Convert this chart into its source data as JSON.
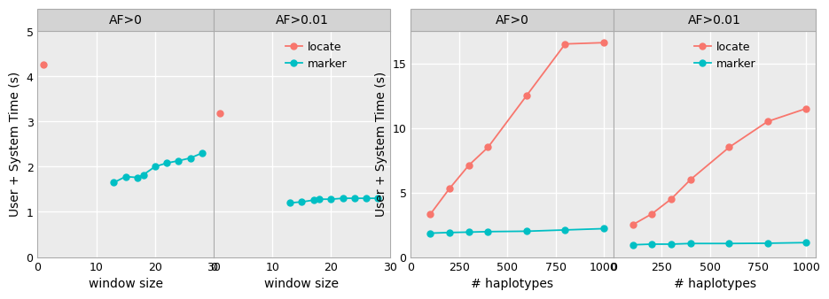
{
  "panel1": {
    "title": "AF>0",
    "locate_x": [
      1
    ],
    "locate_y": [
      4.25
    ],
    "marker_x": [
      13,
      15,
      17,
      18,
      20,
      22,
      24,
      26,
      28
    ],
    "marker_y": [
      1.65,
      1.78,
      1.76,
      1.82,
      2.0,
      2.08,
      2.13,
      2.19,
      2.3
    ],
    "ylim": [
      0,
      5
    ],
    "xlim": [
      0,
      30
    ],
    "yticks": [
      0,
      1,
      2,
      3,
      4,
      5
    ],
    "xticks": [
      0,
      10,
      20,
      30
    ]
  },
  "panel2": {
    "title": "AF>0.01",
    "locate_x": [
      1
    ],
    "locate_y": [
      3.18
    ],
    "marker_x": [
      13,
      15,
      17,
      18,
      20,
      22,
      24,
      26,
      28
    ],
    "marker_y": [
      1.2,
      1.22,
      1.26,
      1.28,
      1.28,
      1.3,
      1.3,
      1.3,
      1.3
    ],
    "ylim": [
      0,
      5
    ],
    "xlim": [
      0,
      30
    ],
    "yticks": [
      0,
      1,
      2,
      3,
      4,
      5
    ],
    "xticks": [
      0,
      10,
      20,
      30
    ]
  },
  "panel3": {
    "title": "AF>0",
    "locate_x": [
      100,
      200,
      300,
      400,
      600,
      800,
      1000
    ],
    "locate_y": [
      3.3,
      5.3,
      7.1,
      8.5,
      12.5,
      16.5,
      16.6
    ],
    "marker_x": [
      100,
      200,
      300,
      400,
      600,
      800,
      1000
    ],
    "marker_y": [
      1.85,
      1.9,
      1.93,
      1.97,
      2.0,
      2.1,
      2.2
    ],
    "ylim": [
      0,
      17.5
    ],
    "xlim": [
      0,
      1050
    ],
    "yticks": [
      0,
      5,
      10,
      15
    ],
    "xticks": [
      0,
      250,
      500,
      750,
      1000
    ]
  },
  "panel4": {
    "title": "AF>0.01",
    "locate_x": [
      100,
      200,
      300,
      400,
      600,
      800,
      1000
    ],
    "locate_y": [
      2.5,
      3.35,
      4.5,
      6.0,
      8.5,
      10.5,
      11.5
    ],
    "marker_x": [
      100,
      200,
      300,
      400,
      600,
      800,
      1000
    ],
    "marker_y": [
      0.95,
      1.0,
      1.0,
      1.05,
      1.05,
      1.07,
      1.12
    ],
    "ylim": [
      0,
      17.5
    ],
    "xlim": [
      0,
      1050
    ],
    "yticks": [
      0,
      5,
      10,
      15
    ],
    "xticks": [
      0,
      250,
      500,
      750,
      1000
    ]
  },
  "locate_color": "#F8766D",
  "marker_color": "#00BFC4",
  "panel_bg": "#EBEBEB",
  "grid_color": "#FFFFFF",
  "header_bg": "#D3D3D3",
  "xlabel_left": "window size",
  "xlabel_right": "# haplotypes",
  "ylabel": "User + System Time (s)",
  "legend_locate": "locate",
  "legend_marker": "marker",
  "marker_size": 5,
  "line_width": 1.3,
  "tick_labelsize": 9,
  "axis_labelsize": 10
}
